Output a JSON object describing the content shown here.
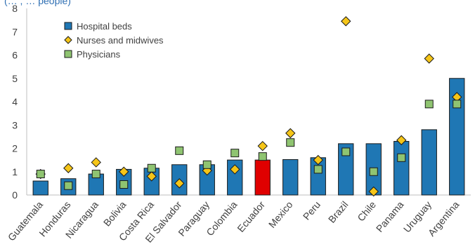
{
  "header_fragment": "(… , … people)",
  "chart_data": {
    "type": "bar",
    "title": "",
    "xlabel": "",
    "ylabel": "",
    "ylim": [
      0,
      8
    ],
    "yticks": [
      "0",
      "1",
      "2",
      "3",
      "4",
      "5",
      "6",
      "7",
      "8"
    ],
    "grid": false,
    "legend_position": "top-left",
    "categories": [
      "Guatemala",
      "Honduras",
      "Nicaragua",
      "Bolivia",
      "Costa Rica",
      "El Salvador",
      "Paraguay",
      "Colombia",
      "Ecuador",
      "Mexico",
      "Peru",
      "Brazil",
      "Chile",
      "Panama",
      "Uruguay",
      "Argentina"
    ],
    "highlight_category": "Ecuador",
    "series": [
      {
        "name": "Hospital beds",
        "kind": "bar",
        "color": "#1f77b4",
        "highlight_color": "#e00000",
        "values": [
          0.6,
          0.7,
          0.9,
          1.1,
          1.15,
          1.3,
          1.3,
          1.5,
          1.5,
          1.52,
          1.6,
          2.2,
          2.2,
          2.3,
          2.8,
          5.0
        ]
      },
      {
        "name": "Nurses and midwives",
        "kind": "diamond",
        "color": "#f5c518",
        "values": [
          0.9,
          1.15,
          1.4,
          1.0,
          0.8,
          0.5,
          1.05,
          1.1,
          2.1,
          2.65,
          1.5,
          7.45,
          0.15,
          2.35,
          5.85,
          4.2
        ]
      },
      {
        "name": "Physicians",
        "kind": "square",
        "color": "#8fc471",
        "values": [
          0.9,
          0.4,
          0.9,
          0.45,
          1.15,
          1.9,
          1.3,
          1.8,
          1.65,
          2.25,
          1.1,
          1.85,
          1.0,
          1.6,
          3.9,
          3.9
        ]
      }
    ]
  }
}
